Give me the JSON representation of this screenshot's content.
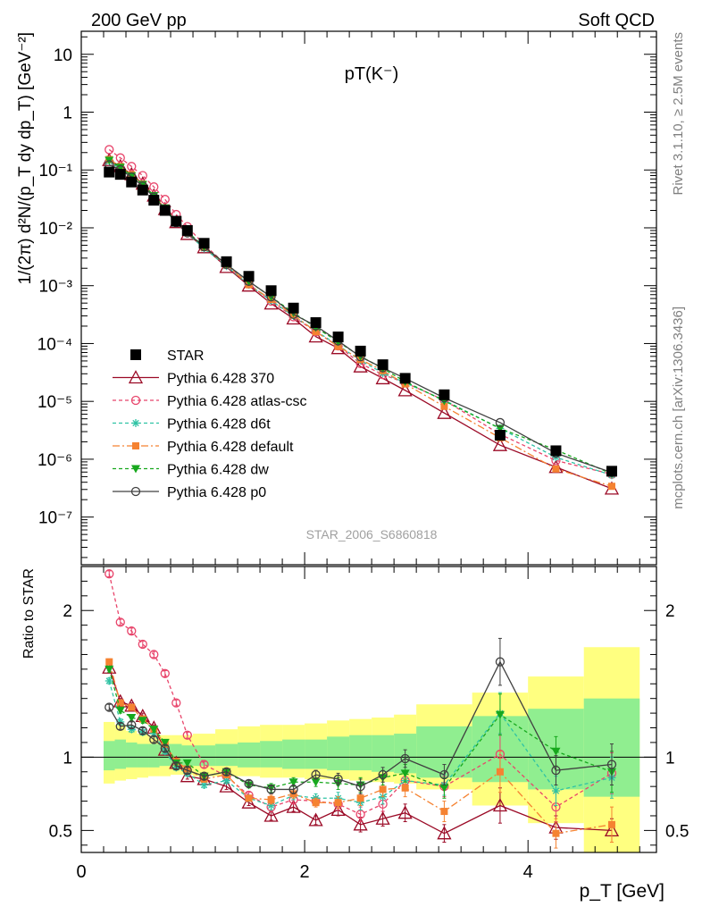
{
  "header": {
    "left": "200 GeV pp",
    "right": "Soft QCD",
    "side_top": "Rivet 3.1.10, ≥ 2.5M events",
    "side_bottom": "mcplots.cern.ch [arXiv:1306.3436]",
    "watermark": "STAR_2006_S6860818"
  },
  "chart_data": [
    {
      "type": "scatter",
      "panel": "main",
      "title": "pT(K⁻)",
      "ylabel": "1/(2π) d²N/(p_T dy dp_T) [GeV⁻²]",
      "xlabel": "p_T [GeV]",
      "xlim": [
        0,
        5.15
      ],
      "ylim": [
        1.5e-08,
        25
      ],
      "yscale": "log",
      "x": [
        0.25,
        0.35,
        0.45,
        0.55,
        0.65,
        0.75,
        0.85,
        0.95,
        1.1,
        1.3,
        1.5,
        1.7,
        1.9,
        2.1,
        2.3,
        2.5,
        2.7,
        2.9,
        3.25,
        3.75,
        4.25,
        4.75
      ],
      "series": [
        {
          "name": "STAR",
          "color": "#000000",
          "marker": "square",
          "dash": "none",
          "values": [
            0.092,
            0.084,
            0.062,
            0.045,
            0.03,
            0.02,
            0.013,
            0.009,
            0.0054,
            0.0026,
            0.00145,
            0.00082,
            0.00041,
            0.00023,
            0.00013,
            7.4e-05,
            4.3e-05,
            2.5e-05,
            1.3e-05,
            2.6e-06,
            1.4e-06,
            6.2e-07
          ]
        },
        {
          "name": "Pythia 6.428 370",
          "color": "#9b0a26",
          "marker": "triangle-open",
          "dash": "none",
          "values": [
            0.148,
            0.116,
            0.084,
            0.058,
            0.036,
            0.021,
            0.0125,
            0.0078,
            0.0046,
            0.0021,
            0.001,
            0.00049,
            0.00027,
            0.000132,
            8.3e-05,
            4e-05,
            2.5e-05,
            1.55e-05,
            6.3e-06,
            1.75e-06,
            7.3e-07,
            3.1e-07
          ]
        },
        {
          "name": "Pythia 6.428 atlas-csc",
          "color": "#e8456b",
          "marker": "circle-open",
          "dash": "4,3",
          "values": [
            0.225,
            0.162,
            0.115,
            0.08,
            0.051,
            0.031,
            0.017,
            0.0105,
            0.0051,
            0.0023,
            0.00107,
            0.00054,
            0.00029,
            0.00016,
            9.1e-05,
            4.5e-05,
            2.9e-05,
            2.1e-05,
            1.05e-05,
            2.7e-06,
            9.5e-07,
            5.5e-07
          ]
        },
        {
          "name": "Pythia 6.428 d6t",
          "color": "#2fc3a4",
          "marker": "star",
          "dash": "4,3",
          "values": [
            0.14,
            0.104,
            0.074,
            0.053,
            0.035,
            0.021,
            0.0121,
            0.008,
            0.0044,
            0.00218,
            0.00104,
            0.00055,
            0.0003,
            0.000165,
            9.3e-05,
            5.1e-05,
            3.1e-05,
            2.1e-05,
            1.05e-05,
            3.4e-06,
            1.08e-06,
            5.3e-07
          ]
        },
        {
          "name": "Pythia 6.428 default",
          "color": "#f58231",
          "marker": "square-filled",
          "dash": "8,3,2,3",
          "values": [
            0.152,
            0.115,
            0.083,
            0.057,
            0.036,
            0.022,
            0.0126,
            0.0083,
            0.0046,
            0.0023,
            0.00104,
            0.00058,
            0.00031,
            0.00016,
            8.9e-05,
            5.3e-05,
            3.4e-05,
            2e-05,
            8.2e-06,
            2.35e-06,
            6.8e-07,
            3.4e-07
          ]
        },
        {
          "name": "Pythia 6.428 dw",
          "color": "#17a81d",
          "marker": "triangle-down",
          "dash": "4,3",
          "values": [
            0.147,
            0.111,
            0.079,
            0.056,
            0.036,
            0.022,
            0.0124,
            0.0086,
            0.0047,
            0.00235,
            0.00118,
            0.00064,
            0.00034,
            0.00019,
            0.000107,
            6e-05,
            3.7e-05,
            2.2e-05,
            1.02e-05,
            3.4e-06,
            1.45e-06,
            5.6e-07
          ]
        },
        {
          "name": "Pythia 6.428 p0",
          "color": "#404040",
          "marker": "circle-open",
          "dash": "none",
          "values": [
            0.123,
            0.101,
            0.076,
            0.053,
            0.034,
            0.021,
            0.0122,
            0.0082,
            0.0047,
            0.00234,
            0.00119,
            0.00064,
            0.00032,
            0.000202,
            0.000111,
            5.9e-05,
            3.8e-05,
            2.5e-05,
            1.15e-05,
            4.3e-06,
            1.27e-06,
            5.9e-07
          ]
        }
      ],
      "legend_position": "lower-left"
    },
    {
      "type": "line",
      "panel": "ratio",
      "ylabel": "Ratio to STAR",
      "xlabel": "p_T [GeV]",
      "xlim": [
        0,
        5.15
      ],
      "ylim": [
        0.35,
        2.3
      ],
      "yticks": [
        0.5,
        1,
        2
      ],
      "xticks": [
        0,
        2,
        4
      ],
      "reference_line": 1,
      "x": [
        0.25,
        0.35,
        0.45,
        0.55,
        0.65,
        0.75,
        0.85,
        0.95,
        1.1,
        1.3,
        1.5,
        1.7,
        1.9,
        2.1,
        2.3,
        2.5,
        2.7,
        2.9,
        3.25,
        3.75,
        4.25,
        4.75
      ],
      "band_edges": [
        0.2,
        0.3,
        0.4,
        0.5,
        0.6,
        0.7,
        0.8,
        0.9,
        1.0,
        1.2,
        1.4,
        1.6,
        1.8,
        2.0,
        2.2,
        2.4,
        2.6,
        2.8,
        3.0,
        3.5,
        4.0,
        4.5,
        5.0
      ],
      "band_stat": [
        [
          0.91,
          1.11
        ],
        [
          0.92,
          1.12
        ],
        [
          0.93,
          1.1
        ],
        [
          0.93,
          1.09
        ],
        [
          0.93,
          1.09
        ],
        [
          0.94,
          1.09
        ],
        [
          0.94,
          1.09
        ],
        [
          0.94,
          1.08
        ],
        [
          0.94,
          1.08
        ],
        [
          0.94,
          1.09
        ],
        [
          0.93,
          1.1
        ],
        [
          0.93,
          1.11
        ],
        [
          0.92,
          1.12
        ],
        [
          0.92,
          1.12
        ],
        [
          0.91,
          1.14
        ],
        [
          0.91,
          1.15
        ],
        [
          0.9,
          1.15
        ],
        [
          0.89,
          1.16
        ],
        [
          0.86,
          1.21
        ],
        [
          0.83,
          1.28
        ],
        [
          0.78,
          1.33
        ],
        [
          0.73,
          1.4
        ]
      ],
      "band_total": [
        [
          0.82,
          1.24
        ],
        [
          0.84,
          1.22
        ],
        [
          0.85,
          1.18
        ],
        [
          0.86,
          1.16
        ],
        [
          0.87,
          1.15
        ],
        [
          0.87,
          1.15
        ],
        [
          0.88,
          1.15
        ],
        [
          0.88,
          1.15
        ],
        [
          0.87,
          1.16
        ],
        [
          0.87,
          1.19
        ],
        [
          0.87,
          1.21
        ],
        [
          0.86,
          1.22
        ],
        [
          0.86,
          1.22
        ],
        [
          0.85,
          1.23
        ],
        [
          0.85,
          1.25
        ],
        [
          0.84,
          1.26
        ],
        [
          0.83,
          1.27
        ],
        [
          0.82,
          1.29
        ],
        [
          0.78,
          1.36
        ],
        [
          0.67,
          1.44
        ],
        [
          0.55,
          1.55
        ],
        [
          0.35,
          1.75
        ]
      ],
      "band_colors": {
        "stat": "#90ee90",
        "total": "#ffff80"
      },
      "series": [
        {
          "name": "Pythia 6.428 370",
          "color": "#9b0a26",
          "marker": "triangle-open",
          "dash": "none",
          "values": [
            1.61,
            1.38,
            1.35,
            1.28,
            1.2,
            1.05,
            0.96,
            0.87,
            0.85,
            0.8,
            0.69,
            0.6,
            0.66,
            0.57,
            0.64,
            0.54,
            0.58,
            0.62,
            0.48,
            0.67,
            0.52,
            0.5
          ],
          "errors": [
            0.02,
            0.02,
            0.02,
            0.02,
            0.02,
            0.02,
            0.02,
            0.02,
            0.02,
            0.02,
            0.02,
            0.03,
            0.03,
            0.03,
            0.04,
            0.05,
            0.05,
            0.06,
            0.06,
            0.12,
            0.08,
            0.08
          ]
        },
        {
          "name": "Pythia 6.428 atlas-csc",
          "color": "#e8456b",
          "marker": "circle-open",
          "dash": "4,3",
          "values": [
            2.25,
            1.92,
            1.86,
            1.77,
            1.7,
            1.57,
            1.37,
            1.15,
            0.95,
            0.87,
            0.74,
            0.66,
            0.71,
            0.7,
            0.68,
            0.61,
            0.68,
            0.84,
            0.8,
            1.02,
            0.66,
            0.89
          ],
          "errors": [
            0.02,
            0.02,
            0.02,
            0.02,
            0.02,
            0.02,
            0.02,
            0.02,
            0.02,
            0.02,
            0.02,
            0.03,
            0.03,
            0.03,
            0.04,
            0.05,
            0.05,
            0.06,
            0.07,
            0.14,
            0.1,
            0.14
          ]
        },
        {
          "name": "Pythia 6.428 d6t",
          "color": "#2fc3a4",
          "marker": "star",
          "dash": "4,3",
          "values": [
            1.52,
            1.24,
            1.19,
            1.17,
            1.16,
            1.04,
            0.93,
            0.89,
            0.81,
            0.84,
            0.72,
            0.67,
            0.74,
            0.72,
            0.72,
            0.69,
            0.73,
            0.84,
            0.81,
            1.3,
            0.77,
            0.86
          ],
          "errors": [
            0.02,
            0.02,
            0.02,
            0.02,
            0.02,
            0.02,
            0.02,
            0.02,
            0.02,
            0.02,
            0.02,
            0.03,
            0.03,
            0.03,
            0.04,
            0.05,
            0.05,
            0.06,
            0.07,
            0.14,
            0.1,
            0.14
          ]
        },
        {
          "name": "Pythia 6.428 default",
          "color": "#f58231",
          "marker": "square-filled",
          "dash": "8,3,2,3",
          "values": [
            1.65,
            1.37,
            1.34,
            1.26,
            1.19,
            1.09,
            0.97,
            0.92,
            0.85,
            0.88,
            0.72,
            0.71,
            0.75,
            0.69,
            0.69,
            0.72,
            0.78,
            0.79,
            0.63,
            0.9,
            0.48,
            0.54
          ],
          "errors": [
            0.02,
            0.02,
            0.02,
            0.02,
            0.02,
            0.02,
            0.02,
            0.02,
            0.02,
            0.02,
            0.02,
            0.03,
            0.03,
            0.03,
            0.04,
            0.05,
            0.05,
            0.06,
            0.07,
            0.14,
            0.1,
            0.12
          ]
        },
        {
          "name": "Pythia 6.428 dw",
          "color": "#17a81d",
          "marker": "triangle-down",
          "dash": "4,3",
          "values": [
            1.6,
            1.32,
            1.27,
            1.25,
            1.19,
            1.1,
            0.96,
            0.96,
            0.87,
            0.9,
            0.81,
            0.79,
            0.83,
            0.83,
            0.82,
            0.81,
            0.86,
            0.89,
            0.79,
            1.29,
            1.04,
            0.9
          ],
          "errors": [
            0.02,
            0.02,
            0.02,
            0.02,
            0.02,
            0.02,
            0.02,
            0.02,
            0.02,
            0.02,
            0.02,
            0.03,
            0.03,
            0.03,
            0.04,
            0.05,
            0.05,
            0.06,
            0.07,
            0.14,
            0.1,
            0.14
          ]
        },
        {
          "name": "Pythia 6.428 p0",
          "color": "#404040",
          "marker": "circle-open",
          "dash": "none",
          "values": [
            1.34,
            1.21,
            1.22,
            1.18,
            1.12,
            1.06,
            0.94,
            0.91,
            0.87,
            0.9,
            0.82,
            0.78,
            0.78,
            0.88,
            0.85,
            0.8,
            0.88,
            0.99,
            0.88,
            1.65,
            0.91,
            0.95
          ],
          "errors": [
            0.02,
            0.02,
            0.02,
            0.02,
            0.02,
            0.02,
            0.02,
            0.02,
            0.02,
            0.02,
            0.02,
            0.03,
            0.03,
            0.03,
            0.04,
            0.05,
            0.05,
            0.06,
            0.07,
            0.16,
            0.1,
            0.14
          ]
        }
      ]
    }
  ]
}
